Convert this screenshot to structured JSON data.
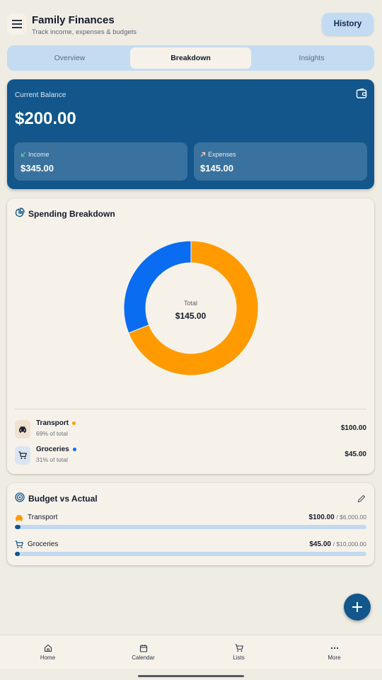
{
  "header": {
    "title": "Family Finances",
    "subtitle": "Track income, expenses & budgets",
    "history_label": "History"
  },
  "tabs": [
    {
      "label": "Overview",
      "active": false
    },
    {
      "label": "Breakdown",
      "active": true
    },
    {
      "label": "Insights",
      "active": false
    }
  ],
  "balance": {
    "label": "Current Balance",
    "value": "$200.00",
    "income": {
      "label": "Income",
      "value": "$345.00"
    },
    "expenses": {
      "label": "Expenses",
      "value": "$145.00"
    }
  },
  "spending": {
    "title": "Spending Breakdown",
    "total_label": "Total",
    "total_value": "$145.00",
    "categories": [
      {
        "name": "Transport",
        "percent_label": "69% of total",
        "amount": "$100.00",
        "value": 100,
        "color": "#ff9b00",
        "icon": "car-icon"
      },
      {
        "name": "Groceries",
        "percent_label": "31% of total",
        "amount": "$45.00",
        "value": 45,
        "color": "#0a6cf0",
        "icon": "cart-icon"
      }
    ]
  },
  "budget": {
    "title": "Budget vs Actual",
    "items": [
      {
        "name": "Transport",
        "spent": "$100.00",
        "limit": "/ $6,000.00",
        "fraction": 0.0167,
        "icon": "car-icon"
      },
      {
        "name": "Groceries",
        "spent": "$45.00",
        "limit": "/ $10,000.00",
        "fraction": 0.0045,
        "icon": "cart-icon"
      }
    ]
  },
  "nav": [
    {
      "label": "Home",
      "icon": "home-icon"
    },
    {
      "label": "Calendar",
      "icon": "calendar-icon"
    },
    {
      "label": "Lists",
      "icon": "cart-icon"
    },
    {
      "label": "More",
      "icon": "more-icon"
    }
  ],
  "colors": {
    "primary": "#12568b",
    "accent_orange": "#ff9b00",
    "accent_blue": "#0a6cf0",
    "tab_bg": "#c4dcf2",
    "background": "#efece4"
  }
}
